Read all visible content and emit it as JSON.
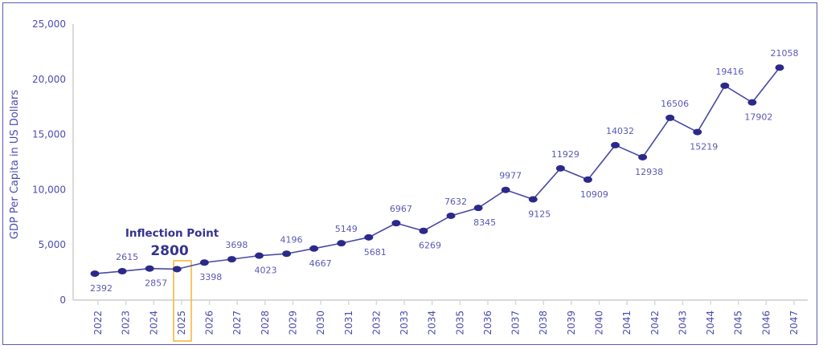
{
  "chart_data": {
    "type": "line",
    "ylabel": "GDP Per Capita in US Dollars",
    "xlabel": "",
    "ylim": [
      0,
      25000
    ],
    "yticks": [
      "0",
      "5,000",
      "10,000",
      "15,000",
      "20,000",
      "25,000"
    ],
    "categories": [
      "2022",
      "2023",
      "2024",
      "2025",
      "2026",
      "2027",
      "2028",
      "2029",
      "2030",
      "2031",
      "2032",
      "2033",
      "2034",
      "2035",
      "2036",
      "2037",
      "2038",
      "2039",
      "2040",
      "2041",
      "2042",
      "2043",
      "2044",
      "2045",
      "2046",
      "2047"
    ],
    "values": [
      2392,
      2615,
      2857,
      2800,
      3398,
      3698,
      4023,
      4196,
      4667,
      5149,
      5681,
      6967,
      6269,
      7632,
      8345,
      9977,
      9125,
      11929,
      10909,
      14032,
      12938,
      16506,
      15219,
      19416,
      17902,
      21058
    ],
    "data_labels": [
      "2392",
      "2615",
      "2857",
      "",
      "3398",
      "3698",
      "4023",
      "4196",
      "4667",
      "5149",
      "5681",
      "6967",
      "6269",
      "7632",
      "8345",
      "9977",
      "9125",
      "11929",
      "10909",
      "14032",
      "12938",
      "16506",
      "15219",
      "19416",
      "17902",
      "21058"
    ],
    "label_positions": [
      "below",
      "above",
      "below",
      "none",
      "below",
      "above",
      "below",
      "above",
      "below",
      "above",
      "below",
      "above",
      "below",
      "above",
      "below",
      "above",
      "below",
      "above",
      "below",
      "above",
      "below",
      "above",
      "below",
      "above",
      "below",
      "above"
    ],
    "grid": false,
    "annotation": {
      "title": "Inflection Point",
      "value": "2800",
      "category": "2025",
      "color": "#f5b335"
    },
    "colors": {
      "line": "#4848a6",
      "marker": "#2b2a8a",
      "text": "#4c4cae",
      "axis": "#d9d9d9",
      "frame": "#5b5bb0"
    }
  }
}
